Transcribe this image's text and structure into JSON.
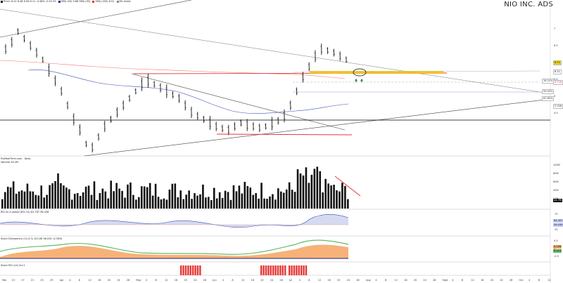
{
  "chart_title": "NIO INC. ADS",
  "header_items": [
    {
      "color": "#000000",
      "text": "Price: 6.22 6.48 6.08 6.11 -0.48% -0.03 55"
    },
    {
      "color": "#1a237e",
      "text": "SMA (50) 5.88 SMA (50)"
    },
    {
      "color": "#e53935",
      "text": "SMA (200) 6.51"
    },
    {
      "color": "#888888",
      "text": "Fib levels"
    }
  ],
  "price_tags": [
    {
      "label": "6.71",
      "color": "#f1d200",
      "text_color": "#000000"
    },
    {
      "label": "6.11",
      "color": "#ffffff",
      "text_color": "#000000"
    },
    {
      "label": "38.20%",
      "color": "#ffffff",
      "text_color": "#333333"
    },
    {
      "label": "5.726",
      "color": "#ffffff",
      "text_color": "#e53935"
    },
    {
      "label": "50.00%",
      "color": "#ffffff",
      "text_color": "#333333"
    },
    {
      "label": "61.80%",
      "color": "#ffffff",
      "text_color": "#333333"
    },
    {
      "label": "5.358",
      "color": "#ffffff",
      "text_color": "#1a237e"
    }
  ],
  "axis_prices": [
    "7",
    "6.5",
    "6",
    "5.5",
    "5",
    "4.5"
  ],
  "volume_panel_label": "ProRealTime.com - Daily",
  "volume_label": "Volume  26.2M",
  "volume_axis": [
    "100M",
    "80M",
    "60M",
    "40M",
    "20M"
  ],
  "volume_tag": "22.7M",
  "rsi_label": "RSI Vs 4 period (RSI 14) 61.787 58.438",
  "rsi_axis": [
    "75",
    "50",
    "25"
  ],
  "rsi_tags": [
    "64.267",
    "58.438"
  ],
  "stoch_label": "Stoch Divergence (14,3,3)  143.06  38.034  -0.0634",
  "stoch_axis": [
    "0.5",
    "0",
    "-0.5"
  ],
  "stoch_tags": [
    "0.226",
    "0.113"
  ],
  "bottom_label": "Stoch RSI (14) Ind 1",
  "date_labels": [
    "Mar",
    "13",
    "17",
    "21",
    "25",
    "29",
    "Apr",
    "4",
    "8",
    "12",
    "16",
    "20",
    "24",
    "28",
    "May",
    "4",
    "8",
    "12",
    "16",
    "20",
    "24",
    "28",
    "Jun",
    "4",
    "8",
    "12",
    "16",
    "20",
    "24",
    "28",
    "Jul",
    "4",
    "8",
    "12",
    "16",
    "20",
    "24",
    "28",
    "Aug",
    "4",
    "8",
    "12",
    "16",
    "20",
    "24",
    "28",
    "Sept",
    "4",
    "8",
    "12",
    "16",
    "20",
    "24",
    "28",
    "Oct",
    "4",
    "8",
    "12"
  ],
  "colors": {
    "sma200": "#e53935",
    "sma50": "#3f51b5",
    "fib_highlight": "#f5c400",
    "trend": "#444444",
    "green_arrow": "#2e7d32",
    "volume_bar": "#111111"
  },
  "icons": [
    "ellipse-marker",
    "up-arrow-icon"
  ]
}
